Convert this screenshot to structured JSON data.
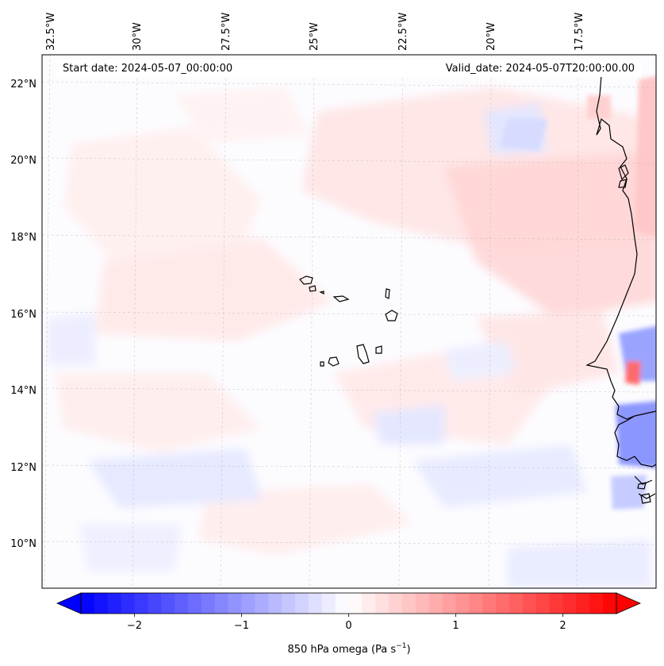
{
  "map": {
    "start_date_label": "Start date: 2024-05-07_00:00:00",
    "valid_date_label": "Valid_date: 2024-05-07T20:00:00.00",
    "lon_labels": [
      "32.5°W",
      "30°W",
      "27.5°W",
      "25°W",
      "22.5°W",
      "20°W",
      "17.5°W"
    ],
    "lat_labels": [
      "22°N",
      "20°N",
      "18°N",
      "16°N",
      "14°N",
      "12°N",
      "10°N"
    ],
    "colors": {
      "negative": "#0000ff",
      "neutral": "#ffffff",
      "positive": "#ff0000",
      "coastline": "#000000",
      "gridline": "#b0b0b0"
    }
  },
  "colorbar": {
    "title_main": "850 hPa omega (Pa s",
    "title_exp": "−1",
    "title_close": ")",
    "ticks": [
      "−2",
      "−1",
      "0",
      "1",
      "2"
    ],
    "tick_values": [
      -2,
      -1,
      0,
      1,
      2
    ],
    "range": [
      -2.5,
      2.5
    ],
    "levels": 40
  }
}
